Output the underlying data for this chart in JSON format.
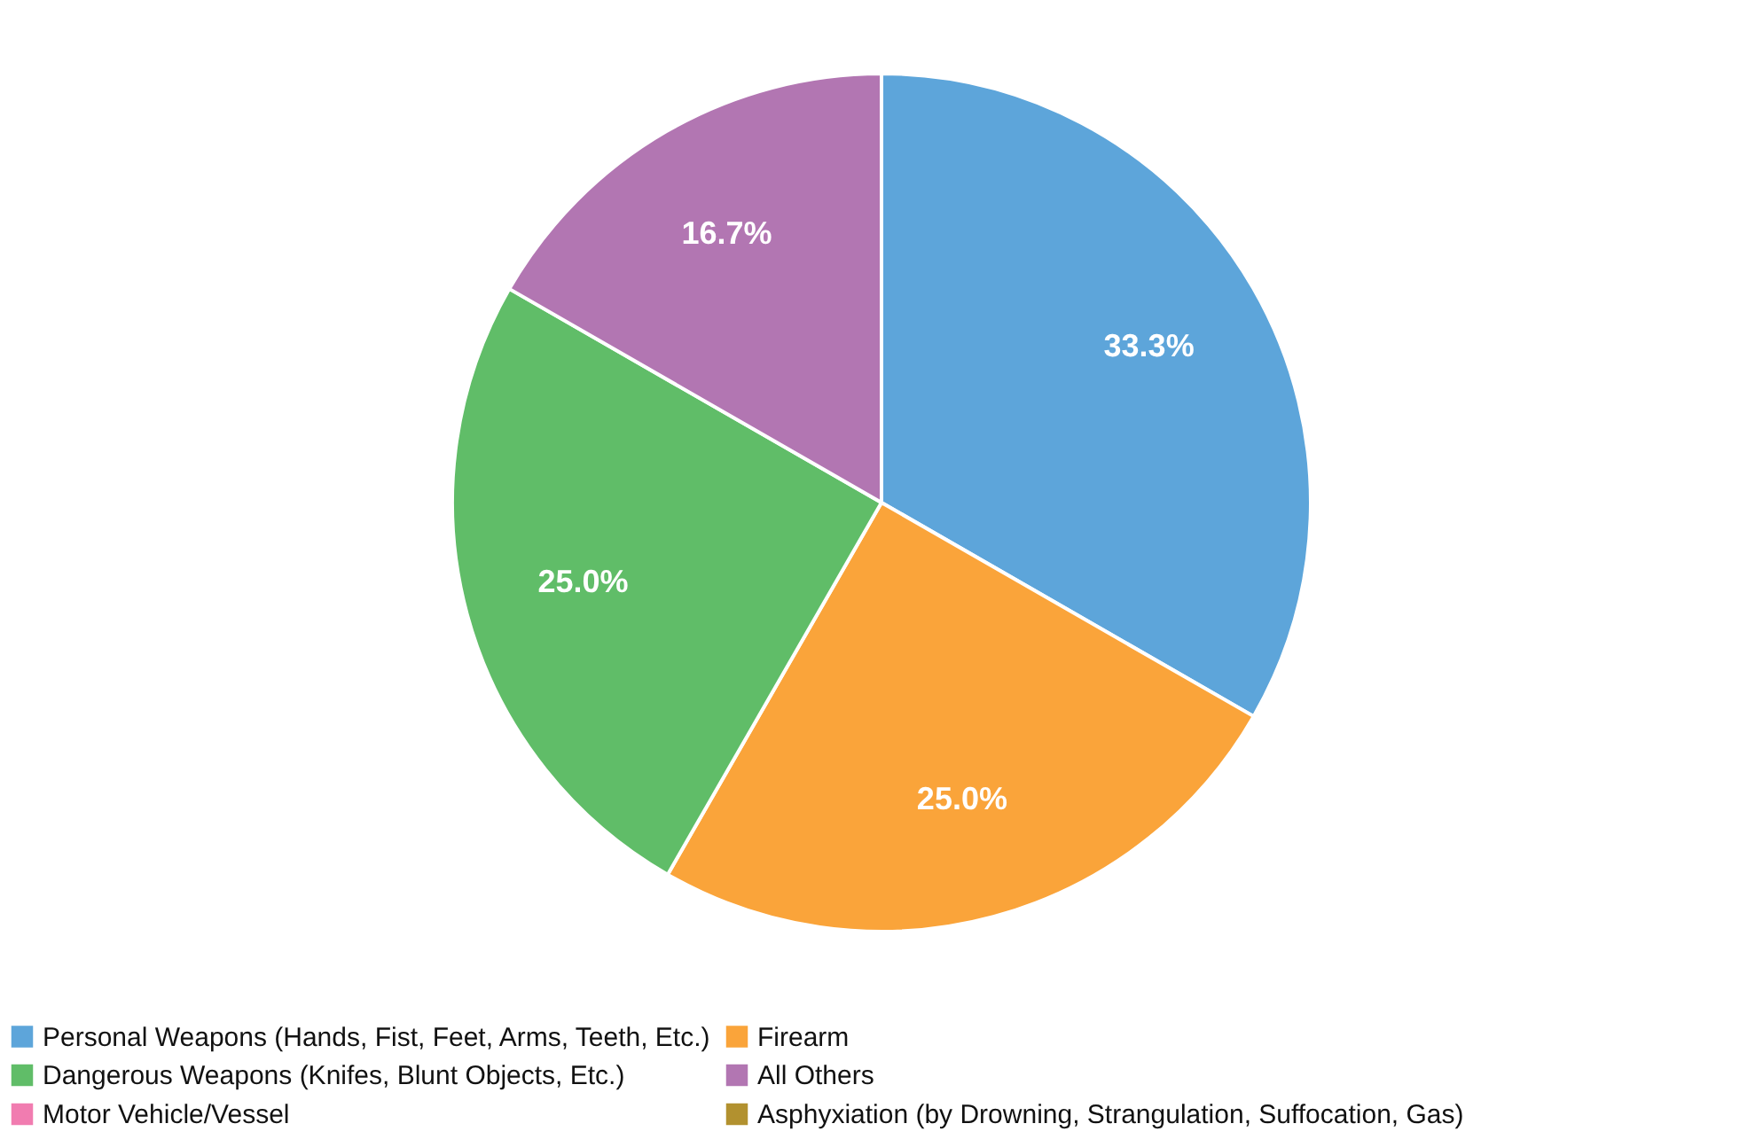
{
  "chart_data": {
    "type": "pie",
    "categories": [
      "Personal Weapons (Hands, Fist, Feet, Arms, Teeth, Etc.)",
      "Firearm",
      "Dangerous Weapons (Knifes, Blunt Objects, Etc.)",
      "All Others",
      "Motor Vehicle/Vessel",
      "Asphyxiation  (by  Drowning,  Strangulation,  Suffocation,  Gas)"
    ],
    "values": [
      33.3,
      25.0,
      25.0,
      16.7,
      0,
      0
    ],
    "colors": [
      "#5da5da",
      "#faa43a",
      "#60bd68",
      "#b276b2",
      "#f17cb0",
      "#b2912f"
    ],
    "value_labels": [
      "33.3%",
      "25.0%",
      "25.0%",
      "16.7%",
      null,
      null
    ],
    "legend": "bottom"
  }
}
